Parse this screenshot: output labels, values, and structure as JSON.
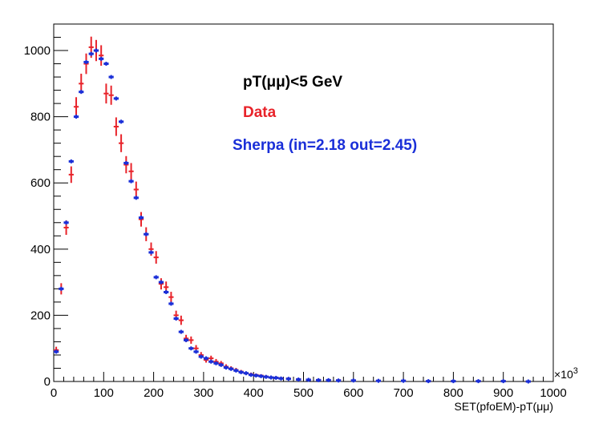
{
  "chart_data": {
    "type": "scatter",
    "title": "",
    "xlabel": "SET(pfoEM)-pT(μμ)",
    "ylabel": "",
    "x_exponent_label": "×10",
    "x_exponent_power": "3",
    "xlim": [
      0,
      1000
    ],
    "ylim": [
      0,
      1080
    ],
    "x_ticks": [
      0,
      100,
      200,
      300,
      400,
      500,
      600,
      700,
      800,
      900,
      1000
    ],
    "x_tick_labels": [
      "0",
      "100",
      "200",
      "300",
      "400",
      "500",
      "600",
      "700",
      "800",
      "900",
      "1000"
    ],
    "y_ticks": [
      0,
      200,
      400,
      600,
      800,
      1000
    ],
    "y_tick_labels": [
      "0",
      "200",
      "400",
      "600",
      "800",
      "1000"
    ],
    "bin_width": 10,
    "grid": false,
    "legend_position": "top-right",
    "annotation": "pT(μμ)<5 GeV",
    "annotation_color": "#000000",
    "series": [
      {
        "name": "Data",
        "color": "#e8232a",
        "x": [
          5,
          15,
          25,
          35,
          45,
          55,
          65,
          75,
          85,
          95,
          105,
          115,
          125,
          135,
          145,
          155,
          165,
          175,
          185,
          195,
          205,
          215,
          225,
          235,
          245,
          255,
          265,
          275,
          285,
          295,
          305,
          315,
          325,
          335,
          345,
          355,
          365,
          375,
          385,
          395,
          405,
          415,
          425,
          435,
          445,
          455,
          470,
          490,
          510,
          530,
          550,
          570,
          600,
          650,
          700,
          750,
          800,
          850,
          900,
          950
        ],
        "y": [
          95,
          280,
          465,
          625,
          830,
          900,
          960,
          1010,
          1000,
          985,
          870,
          865,
          770,
          720,
          655,
          635,
          580,
          490,
          445,
          400,
          375,
          295,
          285,
          255,
          200,
          185,
          130,
          125,
          100,
          80,
          65,
          70,
          60,
          55,
          45,
          40,
          35,
          30,
          25,
          22,
          20,
          18,
          15,
          13,
          12,
          10,
          9,
          7,
          6,
          5,
          4,
          4,
          3,
          2,
          2,
          1,
          1,
          1,
          1,
          0
        ],
        "yerr": [
          10,
          17,
          22,
          25,
          29,
          30,
          31,
          32,
          32,
          31,
          30,
          29,
          28,
          27,
          26,
          25,
          24,
          22,
          21,
          20,
          19,
          17,
          17,
          16,
          14,
          14,
          11,
          11,
          10,
          9,
          8,
          8,
          8,
          7,
          7,
          6,
          6,
          5,
          5,
          5,
          4,
          4,
          4,
          4,
          3,
          3,
          3,
          3,
          2,
          2,
          2,
          2,
          2,
          1,
          1,
          1,
          1,
          1,
          1,
          1
        ]
      },
      {
        "name": "Sherpa (in=2.18 out=2.45)",
        "color": "#1a2fd8",
        "x": [
          5,
          15,
          25,
          35,
          45,
          55,
          65,
          75,
          85,
          95,
          105,
          115,
          125,
          135,
          145,
          155,
          165,
          175,
          185,
          195,
          205,
          215,
          225,
          235,
          245,
          255,
          265,
          275,
          285,
          295,
          305,
          315,
          325,
          335,
          345,
          355,
          365,
          375,
          385,
          395,
          405,
          415,
          425,
          435,
          445,
          455,
          470,
          490,
          510,
          530,
          550,
          570,
          600,
          650,
          700,
          750,
          800,
          850,
          900,
          950
        ],
        "y": [
          90,
          280,
          480,
          665,
          800,
          875,
          965,
          990,
          1000,
          975,
          960,
          920,
          855,
          785,
          660,
          605,
          555,
          495,
          445,
          390,
          315,
          300,
          270,
          235,
          190,
          150,
          125,
          100,
          90,
          75,
          70,
          60,
          55,
          50,
          42,
          38,
          33,
          28,
          25,
          20,
          18,
          16,
          14,
          12,
          11,
          9,
          8,
          6,
          5,
          4,
          4,
          3,
          3,
          2,
          2,
          1,
          1,
          1,
          1,
          0
        ],
        "yerr": [
          0,
          0,
          0,
          0,
          0,
          0,
          0,
          0,
          0,
          0,
          0,
          0,
          0,
          0,
          0,
          0,
          0,
          0,
          0,
          0,
          0,
          0,
          0,
          0,
          0,
          0,
          0,
          0,
          0,
          0,
          0,
          0,
          0,
          0,
          0,
          0,
          0,
          0,
          0,
          0,
          0,
          0,
          0,
          0,
          0,
          0,
          0,
          0,
          0,
          0,
          0,
          0,
          0,
          0,
          0,
          0,
          0,
          0,
          0,
          0
        ]
      }
    ]
  }
}
